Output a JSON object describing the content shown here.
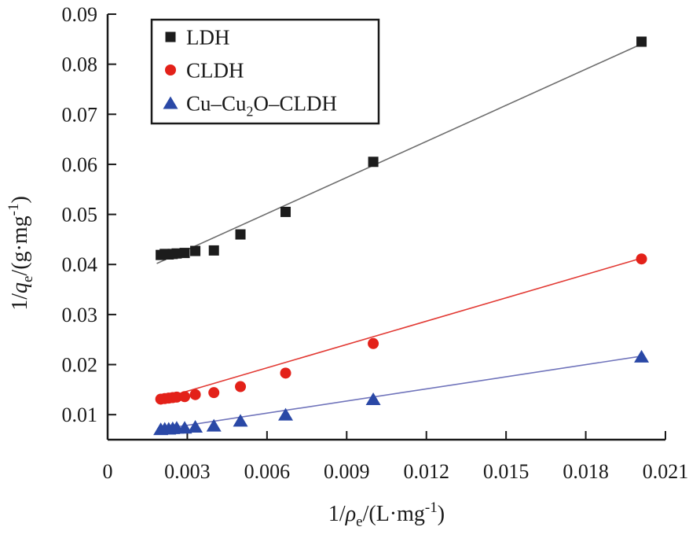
{
  "chart_data": {
    "type": "scatter",
    "title": "",
    "xlabel": "1/pe/(L·mg-1)",
    "ylabel": "1/qe/(g·mg-1)",
    "xlabel_parts": [
      {
        "t": "1/"
      },
      {
        "t": "ρ",
        "italic": true
      },
      {
        "t": "e",
        "sub": true
      },
      {
        "t": "/(L·mg"
      },
      {
        "t": "-1",
        "sup": true
      },
      {
        "t": ")"
      }
    ],
    "ylabel_parts": [
      {
        "t": "1/"
      },
      {
        "t": "q",
        "italic": true
      },
      {
        "t": "e",
        "sub": true
      },
      {
        "t": "/(g·mg"
      },
      {
        "t": "-1",
        "sup": true
      },
      {
        "t": ")"
      }
    ],
    "xlim": [
      0,
      0.021
    ],
    "ylim": [
      0.005,
      0.09
    ],
    "grid": false,
    "axis_color": "#1a1a1a",
    "x_ticks": [
      {
        "v": 0,
        "label": "0"
      },
      {
        "v": 0.003,
        "label": "0.003"
      },
      {
        "v": 0.006,
        "label": "0.006"
      },
      {
        "v": 0.009,
        "label": "0.009"
      },
      {
        "v": 0.012,
        "label": "0.012"
      },
      {
        "v": 0.015,
        "label": "0.015"
      },
      {
        "v": 0.018,
        "label": "0.018"
      },
      {
        "v": 0.021,
        "label": "0.021"
      }
    ],
    "y_ticks": [
      {
        "v": 0.01,
        "label": "0.01"
      },
      {
        "v": 0.02,
        "label": "0.02"
      },
      {
        "v": 0.03,
        "label": "0.03"
      },
      {
        "v": 0.04,
        "label": "0.04"
      },
      {
        "v": 0.05,
        "label": "0.05"
      },
      {
        "v": 0.06,
        "label": "0.06"
      },
      {
        "v": 0.07,
        "label": "0.07"
      },
      {
        "v": 0.08,
        "label": "0.08"
      },
      {
        "v": 0.09,
        "label": "0.09"
      }
    ],
    "legend": {
      "position": "top-left",
      "border": true
    },
    "series": [
      {
        "id": "ldh",
        "name": "LDH",
        "label_parts": [
          {
            "t": "LDH"
          }
        ],
        "marker": "square",
        "color": "#1c1c1c",
        "line_color": "#6e6e6e",
        "x": [
          0.002,
          0.00215,
          0.0023,
          0.00245,
          0.0026,
          0.0029,
          0.0033,
          0.004,
          0.005,
          0.0067,
          0.01,
          0.0201
        ],
        "y": [
          0.0419,
          0.0421,
          0.042,
          0.0421,
          0.0422,
          0.0423,
          0.0427,
          0.0428,
          0.046,
          0.0505,
          0.0605,
          0.0845
        ],
        "fit_line": {
          "x1": 0.00185,
          "y1": 0.0402,
          "x2": 0.02,
          "y2": 0.0838
        }
      },
      {
        "id": "cldh",
        "name": "CLDH",
        "label_parts": [
          {
            "t": "CLDH"
          }
        ],
        "marker": "circle",
        "color": "#e32119",
        "line_color": "#e23a34",
        "x": [
          0.002,
          0.00215,
          0.0023,
          0.00245,
          0.0026,
          0.0029,
          0.0033,
          0.004,
          0.005,
          0.0067,
          0.01,
          0.0201
        ],
        "y": [
          0.0131,
          0.0132,
          0.0133,
          0.0134,
          0.0135,
          0.0136,
          0.014,
          0.0144,
          0.0156,
          0.0183,
          0.0242,
          0.0411
        ],
        "fit_line": {
          "x1": 0.00185,
          "y1": 0.0129,
          "x2": 0.02,
          "y2": 0.0411
        }
      },
      {
        "id": "cu-cu2o-cldh",
        "name": "Cu–Cu2O–CLDH",
        "label_parts": [
          {
            "t": "Cu–Cu"
          },
          {
            "t": "2",
            "sub": true
          },
          {
            "t": "O–CLDH"
          }
        ],
        "marker": "triangle",
        "color": "#2a48a6",
        "line_color": "#7074bb",
        "x": [
          0.002,
          0.00215,
          0.0023,
          0.00245,
          0.0026,
          0.0029,
          0.0033,
          0.004,
          0.005,
          0.0067,
          0.01,
          0.0201
        ],
        "y": [
          0.0071,
          0.0072,
          0.0072,
          0.0073,
          0.0074,
          0.0074,
          0.0076,
          0.0078,
          0.0088,
          0.01,
          0.0131,
          0.0216
        ],
        "fit_line": {
          "x1": 0.00185,
          "y1": 0.00695,
          "x2": 0.02,
          "y2": 0.0216
        }
      }
    ]
  }
}
